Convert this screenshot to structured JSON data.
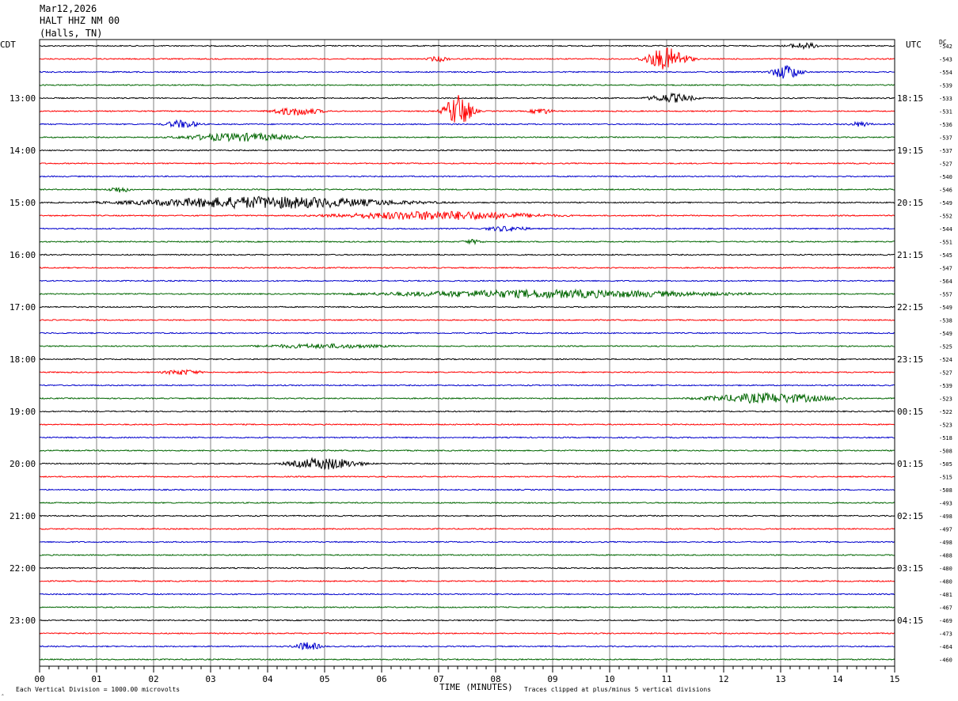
{
  "header": {
    "date": "Mar12,2026",
    "station": "HALT HHZ NM 00",
    "location": "(Halls, TN)"
  },
  "left_axis_label": "CDT",
  "right_axis_label": "UTC",
  "dc_label": "DC",
  "footer": {
    "left_mark": "‸",
    "scale_note": "Each Vertical Division = 1000.00 microvolts",
    "clip_note": "Traces clipped at plus/minus 5 vertical divisions"
  },
  "colors": {
    "trace_cycle": [
      "#000000",
      "#ff0000",
      "#0000cc",
      "#006600"
    ],
    "grid": "#808080",
    "background": "#ffffff"
  },
  "chart_data": {
    "type": "line",
    "title": "",
    "xlabel": "TIME (MINUTES)",
    "xlim": [
      0,
      15
    ],
    "x_ticks": [
      "00",
      "01",
      "02",
      "03",
      "04",
      "05",
      "06",
      "07",
      "08",
      "09",
      "10",
      "11",
      "12",
      "13",
      "14",
      "15"
    ],
    "minutes_per_line": 15,
    "trace_count": 48,
    "left_hour_labels": [
      {
        "line": 4,
        "label": "13:00"
      },
      {
        "line": 8,
        "label": "14:00"
      },
      {
        "line": 12,
        "label": "15:00"
      },
      {
        "line": 16,
        "label": "16:00"
      },
      {
        "line": 20,
        "label": "17:00"
      },
      {
        "line": 24,
        "label": "18:00"
      },
      {
        "line": 28,
        "label": "19:00"
      },
      {
        "line": 32,
        "label": "20:00"
      },
      {
        "line": 36,
        "label": "21:00"
      },
      {
        "line": 40,
        "label": "22:00"
      },
      {
        "line": 44,
        "label": "23:00"
      }
    ],
    "right_hour_labels": [
      {
        "line": 4,
        "label": "18:15"
      },
      {
        "line": 8,
        "label": "19:15"
      },
      {
        "line": 12,
        "label": "20:15"
      },
      {
        "line": 16,
        "label": "21:15"
      },
      {
        "line": 20,
        "label": "22:15"
      },
      {
        "line": 24,
        "label": "23:15"
      },
      {
        "line": 28,
        "label": "00:15"
      },
      {
        "line": 32,
        "label": "01:15"
      },
      {
        "line": 36,
        "label": "02:15"
      },
      {
        "line": 40,
        "label": "03:15"
      },
      {
        "line": 44,
        "label": "04:15"
      }
    ],
    "dc_offsets": [
      "-542",
      "-543",
      "-554",
      "-539",
      "-533",
      "-531",
      "-536",
      "-537",
      "-537",
      "-527",
      "-540",
      "-546",
      "-549",
      "-552",
      "-544",
      "-551",
      "-545",
      "-547",
      "-564",
      "-557",
      "-549",
      "-538",
      "-549",
      "-525",
      "-524",
      "-527",
      "-539",
      "-523",
      "-522",
      "-523",
      "-518",
      "-508",
      "-505",
      "-515",
      "-508",
      "-493",
      "-498",
      "-497",
      "-498",
      "-488",
      "-480",
      "-480",
      "-481",
      "-467",
      "-469",
      "-473",
      "-464",
      "-460"
    ],
    "noise_amplitude_divisions": 0.12,
    "bursts": [
      {
        "line": 0,
        "minute": 13.4,
        "width": 0.6,
        "amp": 0.7
      },
      {
        "line": 1,
        "minute": 7.0,
        "width": 0.4,
        "amp": 0.6
      },
      {
        "line": 1,
        "minute": 11.0,
        "width": 0.7,
        "amp": 2.4
      },
      {
        "line": 2,
        "minute": 13.1,
        "width": 0.5,
        "amp": 1.6
      },
      {
        "line": 4,
        "minute": 11.1,
        "width": 0.8,
        "amp": 1.0
      },
      {
        "line": 5,
        "minute": 4.5,
        "width": 0.9,
        "amp": 0.9
      },
      {
        "line": 5,
        "minute": 7.35,
        "width": 0.45,
        "amp": 3.6
      },
      {
        "line": 5,
        "minute": 8.8,
        "width": 0.4,
        "amp": 0.7
      },
      {
        "line": 6,
        "minute": 2.5,
        "width": 0.6,
        "amp": 0.9
      },
      {
        "line": 6,
        "minute": 14.4,
        "width": 0.4,
        "amp": 0.6
      },
      {
        "line": 7,
        "minute": 3.5,
        "width": 2.0,
        "amp": 0.9
      },
      {
        "line": 11,
        "minute": 1.4,
        "width": 0.4,
        "amp": 0.7
      },
      {
        "line": 12,
        "minute": 4.0,
        "width": 4.5,
        "amp": 1.3
      },
      {
        "line": 13,
        "minute": 7.0,
        "width": 3.5,
        "amp": 1.0
      },
      {
        "line": 14,
        "minute": 8.2,
        "width": 0.8,
        "amp": 0.6
      },
      {
        "line": 15,
        "minute": 7.6,
        "width": 0.4,
        "amp": 0.5
      },
      {
        "line": 19,
        "minute": 9.0,
        "width": 6.0,
        "amp": 0.9
      },
      {
        "line": 23,
        "minute": 5.0,
        "width": 2.5,
        "amp": 0.5
      },
      {
        "line": 25,
        "minute": 2.5,
        "width": 0.7,
        "amp": 0.6
      },
      {
        "line": 27,
        "minute": 12.8,
        "width": 2.2,
        "amp": 1.1
      },
      {
        "line": 32,
        "minute": 5.0,
        "width": 1.2,
        "amp": 1.3
      },
      {
        "line": 46,
        "minute": 4.7,
        "width": 0.5,
        "amp": 0.9
      }
    ]
  }
}
